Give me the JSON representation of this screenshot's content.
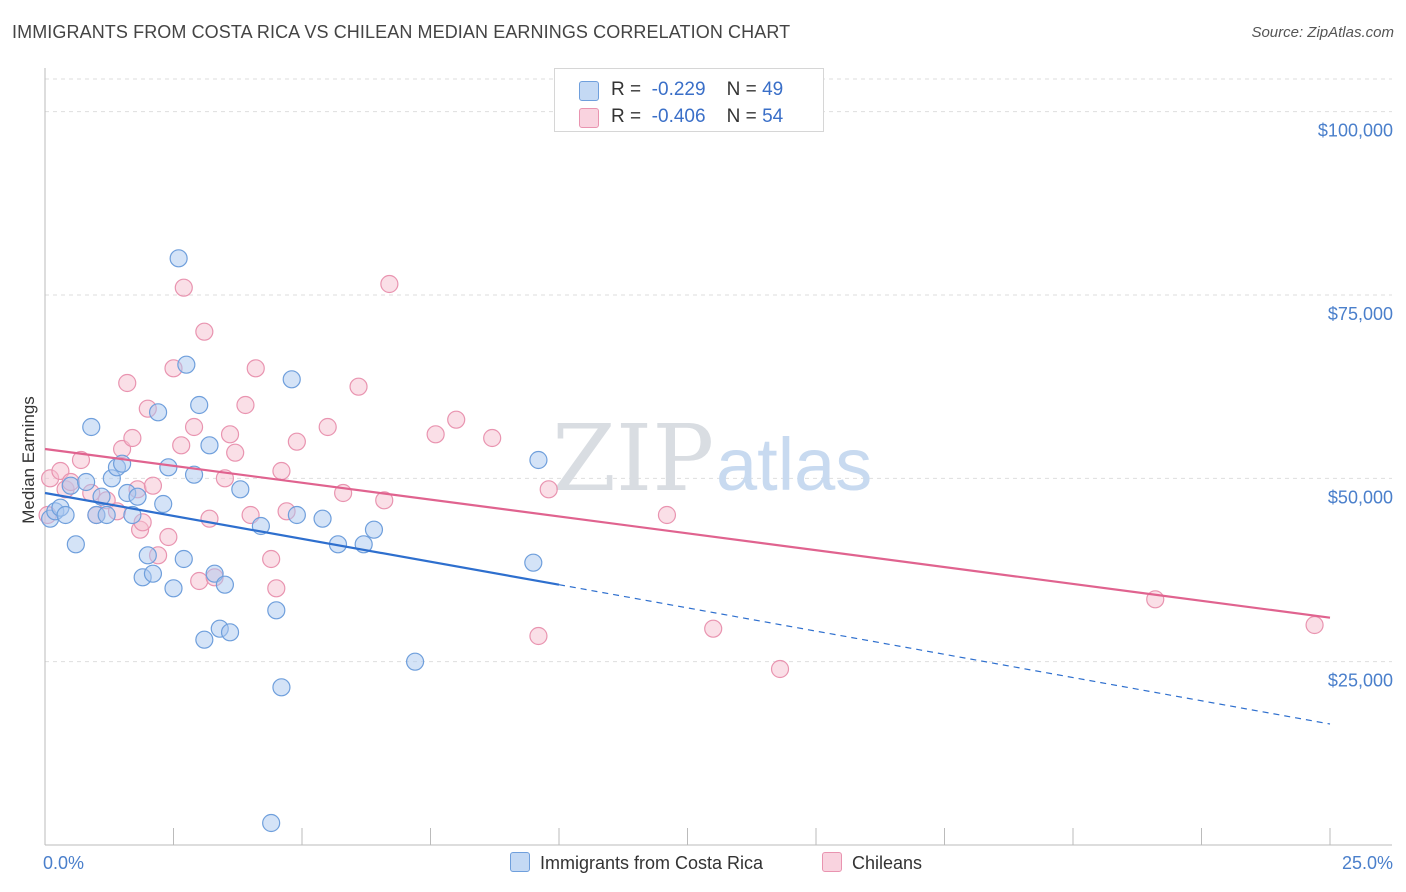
{
  "title": "IMMIGRANTS FROM COSTA RICA VS CHILEAN MEDIAN EARNINGS CORRELATION CHART",
  "source": "Source: ZipAtlas.com",
  "watermark": {
    "zip": "ZIP",
    "atlas": "atlas"
  },
  "legend": {
    "rows": [
      {
        "r_label": "R =",
        "r_value": "-0.229",
        "n_label": "N =",
        "n_value": "49"
      },
      {
        "r_label": "R =",
        "r_value": "-0.406",
        "n_label": "N =",
        "n_value": "54"
      }
    ]
  },
  "bottom_legend": [
    "Immigrants from Costa Rica",
    "Chileans"
  ],
  "colors": {
    "blue_fill": "#a9c8ef",
    "blue_stroke": "#6f9fdc",
    "blue_line": "#2e6fce",
    "pink_fill": "#f5bfd0",
    "pink_stroke": "#e994b0",
    "pink_line": "#e0638f",
    "tick_text": "#4a7fcb"
  },
  "chart_data": {
    "type": "scatter",
    "title": "IMMIGRANTS FROM COSTA RICA VS CHILEAN MEDIAN EARNINGS CORRELATION CHART",
    "xlabel": "",
    "ylabel": "Median Earnings",
    "xlim": [
      0,
      25
    ],
    "ylim": [
      0,
      105000
    ],
    "x_tick_labels": [
      "0.0%",
      "25.0%"
    ],
    "y_ticks": [
      {
        "value": 25000,
        "label": "$25,000"
      },
      {
        "value": 50000,
        "label": "$50,000"
      },
      {
        "value": 75000,
        "label": "$75,000"
      },
      {
        "value": 100000,
        "label": "$100,000"
      }
    ],
    "grid": true,
    "series": [
      {
        "name": "Immigrants from Costa Rica",
        "color": "#a9c8ef",
        "points": [
          [
            0.1,
            44500
          ],
          [
            0.2,
            45500
          ],
          [
            0.3,
            46000
          ],
          [
            0.4,
            45000
          ],
          [
            0.5,
            49000
          ],
          [
            0.6,
            41000
          ],
          [
            0.8,
            49500
          ],
          [
            0.9,
            57000
          ],
          [
            1.0,
            45000
          ],
          [
            1.1,
            47500
          ],
          [
            1.2,
            45000
          ],
          [
            1.3,
            50000
          ],
          [
            1.4,
            51500
          ],
          [
            1.5,
            52000
          ],
          [
            1.6,
            48000
          ],
          [
            1.7,
            45000
          ],
          [
            1.8,
            47500
          ],
          [
            1.9,
            36500
          ],
          [
            2.0,
            39500
          ],
          [
            2.1,
            37000
          ],
          [
            2.2,
            59000
          ],
          [
            2.3,
            46500
          ],
          [
            2.4,
            51500
          ],
          [
            2.5,
            35000
          ],
          [
            2.6,
            80000
          ],
          [
            2.7,
            39000
          ],
          [
            2.75,
            65500
          ],
          [
            2.9,
            50500
          ],
          [
            3.0,
            60000
          ],
          [
            3.1,
            28000
          ],
          [
            3.2,
            54500
          ],
          [
            3.3,
            37000
          ],
          [
            3.4,
            29500
          ],
          [
            3.5,
            35500
          ],
          [
            3.6,
            29000
          ],
          [
            3.8,
            48500
          ],
          [
            4.2,
            43500
          ],
          [
            4.4,
            3000
          ],
          [
            4.5,
            32000
          ],
          [
            4.6,
            21500
          ],
          [
            4.8,
            63500
          ],
          [
            4.9,
            45000
          ],
          [
            5.4,
            44500
          ],
          [
            5.7,
            41000
          ],
          [
            6.2,
            41000
          ],
          [
            6.4,
            43000
          ],
          [
            7.2,
            25000
          ],
          [
            9.5,
            38500
          ],
          [
            9.6,
            52500
          ]
        ]
      },
      {
        "name": "Chileans",
        "color": "#f5bfd0",
        "points": [
          [
            0.1,
            50000
          ],
          [
            0.3,
            51000
          ],
          [
            0.4,
            48500
          ],
          [
            0.5,
            49500
          ],
          [
            0.7,
            52500
          ],
          [
            0.9,
            48000
          ],
          [
            1.0,
            45000
          ],
          [
            1.2,
            47000
          ],
          [
            1.4,
            45500
          ],
          [
            1.5,
            54000
          ],
          [
            1.6,
            63000
          ],
          [
            1.7,
            55500
          ],
          [
            1.8,
            48500
          ],
          [
            1.85,
            43000
          ],
          [
            1.9,
            44000
          ],
          [
            2.0,
            59500
          ],
          [
            2.1,
            49000
          ],
          [
            2.2,
            39500
          ],
          [
            2.4,
            42000
          ],
          [
            2.5,
            65000
          ],
          [
            2.65,
            54500
          ],
          [
            2.7,
            76000
          ],
          [
            2.9,
            57000
          ],
          [
            3.0,
            36000
          ],
          [
            3.1,
            70000
          ],
          [
            3.2,
            44500
          ],
          [
            3.3,
            36500
          ],
          [
            3.5,
            50000
          ],
          [
            3.6,
            56000
          ],
          [
            3.7,
            53500
          ],
          [
            3.9,
            60000
          ],
          [
            4.0,
            45000
          ],
          [
            4.1,
            65000
          ],
          [
            4.4,
            39000
          ],
          [
            4.5,
            35000
          ],
          [
            4.6,
            51000
          ],
          [
            4.7,
            45500
          ],
          [
            4.9,
            55000
          ],
          [
            5.5,
            57000
          ],
          [
            5.8,
            48000
          ],
          [
            6.1,
            62500
          ],
          [
            6.6,
            47000
          ],
          [
            6.7,
            76500
          ],
          [
            7.6,
            56000
          ],
          [
            8.0,
            58000
          ],
          [
            8.7,
            55500
          ],
          [
            9.6,
            28500
          ],
          [
            9.8,
            48500
          ],
          [
            12.1,
            45000
          ],
          [
            13.0,
            29500
          ],
          [
            14.3,
            24000
          ],
          [
            21.6,
            33500
          ],
          [
            24.7,
            30000
          ],
          [
            0.05,
            45000
          ]
        ]
      }
    ],
    "trend_lines": [
      {
        "series": "Immigrants from Costa Rica",
        "solid_from": [
          0,
          48000
        ],
        "solid_to": [
          10,
          35500
        ],
        "dashed_to": [
          25,
          16500
        ]
      },
      {
        "series": "Chileans",
        "from": [
          0,
          54000
        ],
        "to": [
          25,
          31000
        ]
      }
    ]
  }
}
